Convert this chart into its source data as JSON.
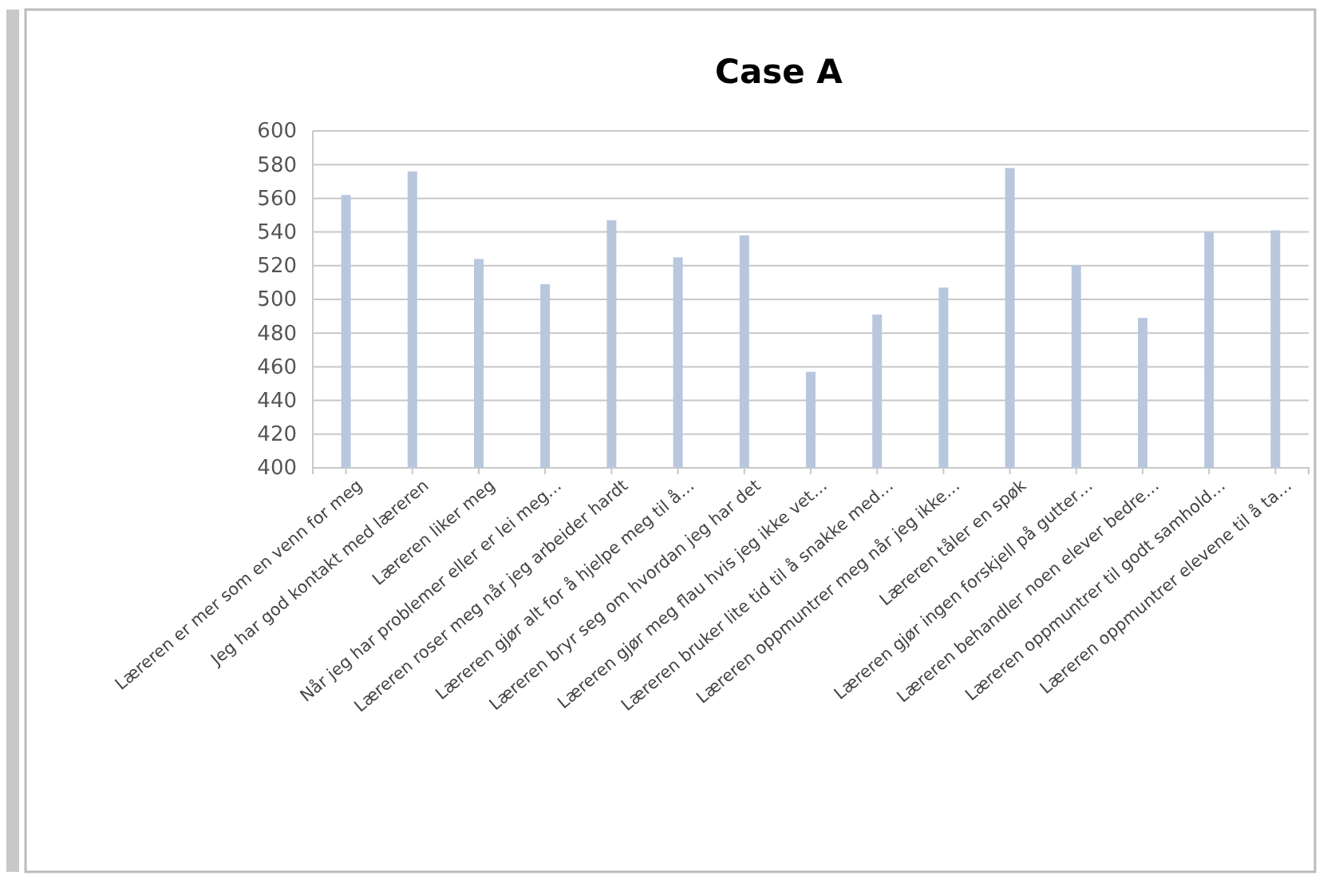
{
  "chart_data": {
    "type": "bar",
    "title": "Case A",
    "categories": [
      "Læreren er mer som en venn for meg",
      "Jeg har god kontakt med læreren",
      "Læreren liker meg",
      "Når jeg har problemer eller er lei meg…",
      "Læreren roser meg når jeg arbeider hardt",
      "Læreren gjør alt for å hjelpe meg til å…",
      "Læreren bryr seg om hvordan jeg har det",
      "Læreren gjør meg flau hvis jeg ikke vet…",
      "Læreren bruker lite tid til å snakke med…",
      "Læreren oppmuntrer meg når jeg ikke…",
      "Læreren tåler en spøk",
      "Læreren gjør ingen forskjell på gutter…",
      "Læreren behandler noen elever bedre…",
      "Læreren oppmuntrer til godt samhold…",
      "Læreren oppmuntrer elevene til å ta…"
    ],
    "values": [
      562,
      576,
      524,
      509,
      547,
      525,
      538,
      457,
      491,
      507,
      578,
      520,
      489,
      540,
      541
    ],
    "color": "#b9c7de",
    "ylim": [
      400,
      600
    ],
    "yticks": [
      400,
      420,
      440,
      460,
      480,
      500,
      520,
      540,
      560,
      580,
      600
    ],
    "grid": "y"
  }
}
